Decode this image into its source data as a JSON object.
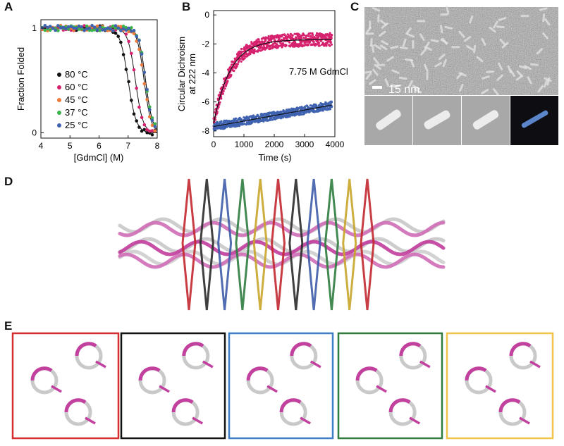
{
  "panels": {
    "A": {
      "letter": "A"
    },
    "B": {
      "letter": "B"
    },
    "C": {
      "letter": "C"
    },
    "D": {
      "letter": "D"
    },
    "E": {
      "letter": "E"
    }
  },
  "chart_data": [
    {
      "panel": "A",
      "type": "scatter",
      "xlabel": "[GdmCl] (M)",
      "ylabel": "Fraction Folded",
      "xlim": [
        4,
        8
      ],
      "ylim": [
        -0.05,
        1.08
      ],
      "x_ticks": [
        "4",
        "5",
        "6",
        "7",
        "8"
      ],
      "y_ticks": [
        "0",
        "1"
      ],
      "legend_position": "left",
      "fit_lines": true,
      "series": [
        {
          "name": "80 °C",
          "color": "#111111",
          "midpoint": 7.0,
          "slope": 0.14
        },
        {
          "name": "60 °C",
          "color": "#d6226e",
          "midpoint": 7.25,
          "slope": 0.13
        },
        {
          "name": "45 °C",
          "color": "#f07a3a",
          "midpoint": 7.55,
          "slope": 0.12
        },
        {
          "name": "37 °C",
          "color": "#3bb44a",
          "midpoint": 7.6,
          "slope": 0.12
        },
        {
          "name": "25 °C",
          "color": "#3f62b0",
          "midpoint": 7.6,
          "slope": 0.12
        }
      ]
    },
    {
      "panel": "B",
      "type": "scatter",
      "xlabel": "Time (s)",
      "ylabel": "Circular Dichroism at 222 nm",
      "ylabel_lines": [
        "Circular Dichroism",
        "at 222 nm"
      ],
      "annotation": "7.75 M GdmCl",
      "xlim": [
        0,
        4000
      ],
      "ylim": [
        -8.4,
        0.3
      ],
      "x_ticks": [
        "0",
        "1000",
        "2000",
        "3000",
        "4000"
      ],
      "y_ticks": [
        "0",
        "-2",
        "-4",
        "-6",
        "-8"
      ],
      "fit_lines": true,
      "series": [
        {
          "color": "#d6226e",
          "start": -7.5,
          "plateau": -1.7,
          "tau": 550
        },
        {
          "color": "#3f62b0",
          "start": -7.7,
          "slope_per_s": 0.00038
        }
      ]
    }
  ],
  "micrograph": {
    "scale_bar_label": "15 nm"
  },
  "helix_ring_colors": [
    "#c2282f",
    "#2b2b2b",
    "#3e5ca8",
    "#2e7d3f",
    "#c8a52a",
    "#c2282f",
    "#2b2b2b",
    "#3e5ca8",
    "#2e7d3f",
    "#c8a52a",
    "#c2282f"
  ],
  "cross_section_frames": [
    {
      "color": "#d62e2e"
    },
    {
      "color": "#111111"
    },
    {
      "color": "#3f7fc8"
    },
    {
      "color": "#2e7d3f"
    },
    {
      "color": "#f2c24a"
    }
  ]
}
